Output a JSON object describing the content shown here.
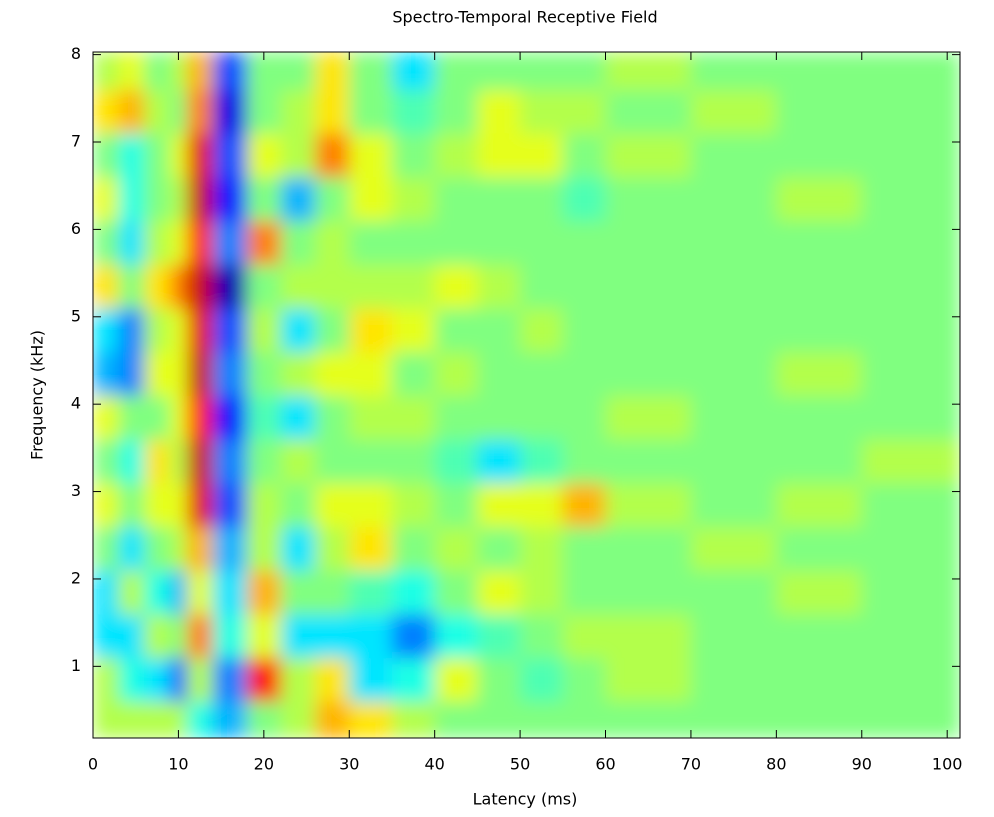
{
  "chart_data": {
    "type": "heatmap",
    "title": "Spectro-Temporal Receptive Field",
    "x_label": "Latency (ms)",
    "y_label": "Frequency (kHz)",
    "xlim": [
      0,
      101.5
    ],
    "ylim": [
      0.18,
      8.03
    ],
    "xticks": [
      0,
      10,
      20,
      30,
      40,
      50,
      60,
      70,
      80,
      90,
      100
    ],
    "yticks": [
      1,
      2,
      3,
      4,
      5,
      6,
      7,
      8
    ],
    "colormap": "jet",
    "clim": [
      -1,
      1
    ],
    "xbins": [
      0,
      3,
      6,
      9,
      11,
      14,
      18,
      22,
      26,
      30,
      35,
      40,
      45,
      50,
      55,
      60,
      70,
      80,
      90,
      101.5
    ],
    "ybins": [
      0.18,
      0.6,
      1.1,
      1.6,
      2.1,
      2.6,
      3.1,
      3.6,
      4.1,
      4.6,
      5.1,
      5.6,
      6.1,
      6.6,
      7.1,
      7.6,
      8.03
    ],
    "values": [
      [
        0.1,
        0.1,
        0.1,
        0.1,
        -0.2,
        -0.4,
        0,
        0.1,
        0.4,
        0.3,
        0.1,
        0,
        0,
        0,
        0,
        0,
        0,
        0,
        0
      ],
      [
        0.1,
        -0.2,
        -0.3,
        -0.6,
        0.1,
        -0.5,
        0.7,
        0.1,
        0.3,
        -0.3,
        -0.2,
        0.2,
        0,
        -0.1,
        0,
        0.1,
        0,
        0,
        0
      ],
      [
        -0.3,
        -0.3,
        0.1,
        0,
        0.5,
        -0.2,
        0.2,
        -0.3,
        -0.3,
        -0.3,
        -0.5,
        -0.2,
        -0.1,
        0,
        0.1,
        0.1,
        0,
        0,
        0
      ],
      [
        -0.3,
        0.1,
        -0.2,
        -0.4,
        0.2,
        -0.3,
        0.4,
        0,
        0,
        -0.1,
        -0.2,
        0,
        0.2,
        0.1,
        0,
        0,
        0,
        0.1,
        0
      ],
      [
        0,
        -0.3,
        0,
        0.1,
        0.4,
        -0.4,
        0.1,
        -0.3,
        0.1,
        0.3,
        0,
        0.1,
        0,
        0.1,
        0,
        0,
        0.1,
        0,
        0
      ],
      [
        0.2,
        0,
        0.2,
        0.2,
        0.8,
        -0.6,
        0.1,
        0,
        0.2,
        0.2,
        0.1,
        0,
        0.2,
        0.2,
        0.4,
        0.1,
        0,
        0.1,
        0
      ],
      [
        0,
        -0.2,
        0.3,
        0.1,
        0.85,
        -0.5,
        0,
        0.1,
        0,
        0,
        0,
        -0.1,
        -0.3,
        -0.1,
        0,
        0,
        0,
        0,
        0.1
      ],
      [
        0.2,
        0,
        0,
        0.2,
        0.7,
        -0.7,
        -0.1,
        -0.3,
        0,
        0.1,
        0.1,
        0,
        0,
        0,
        0,
        0.1,
        0,
        0,
        0
      ],
      [
        -0.4,
        -0.5,
        0.2,
        0.2,
        0.85,
        -0.5,
        0,
        0.1,
        0.2,
        0.2,
        0,
        0.1,
        0,
        0,
        0,
        0,
        0,
        0.1,
        0
      ],
      [
        -0.3,
        -0.5,
        0.1,
        0.2,
        0.8,
        -0.6,
        0.1,
        -0.3,
        0,
        0.3,
        0.2,
        0,
        0,
        0.1,
        0,
        0,
        0,
        0,
        0
      ],
      [
        0.3,
        0,
        0.3,
        0.5,
        0.85,
        -0.9,
        0,
        0.1,
        0.1,
        0.1,
        0.1,
        0.2,
        0.1,
        0,
        0,
        0,
        0,
        0,
        0
      ],
      [
        0,
        -0.3,
        0.1,
        0.2,
        0.7,
        -0.5,
        0.5,
        0,
        0.1,
        0,
        0,
        0,
        0,
        0,
        0,
        0,
        0,
        0,
        0
      ],
      [
        0.2,
        -0.2,
        0,
        0.1,
        0.85,
        -0.7,
        0,
        -0.4,
        0,
        0.2,
        0.1,
        0,
        0,
        0,
        -0.1,
        0,
        0,
        0.1,
        0
      ],
      [
        0,
        -0.2,
        0,
        0.2,
        0.8,
        -0.6,
        0.2,
        0.1,
        0.5,
        0.2,
        0,
        0.1,
        0.2,
        0.2,
        0,
        0.1,
        0,
        0,
        0
      ],
      [
        0.3,
        0.4,
        0.1,
        0,
        0.5,
        -0.8,
        0,
        0.1,
        0.3,
        0,
        -0.1,
        0,
        0.2,
        0.1,
        0.1,
        0,
        0.1,
        0,
        0
      ],
      [
        0.1,
        0.2,
        0,
        0.1,
        0.4,
        -0.6,
        0,
        0,
        0.3,
        0,
        -0.3,
        0,
        0,
        0,
        0,
        0.1,
        0,
        0,
        0
      ]
    ]
  }
}
